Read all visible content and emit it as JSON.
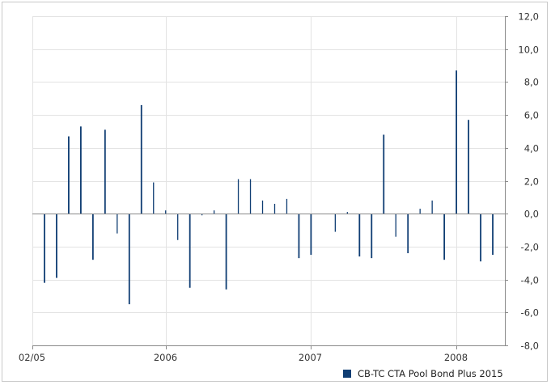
{
  "chart_data": {
    "type": "bar",
    "title": "",
    "xlabel": "",
    "ylabel": "",
    "ylim": [
      -8.0,
      12.0
    ],
    "y_ticks": [
      12.0,
      10.0,
      8.0,
      6.0,
      4.0,
      2.0,
      0.0,
      -2.0,
      -4.0,
      -6.0,
      -8.0
    ],
    "y_tick_labels": [
      "12,0",
      "10,0",
      "8,0",
      "6,0",
      "4,0",
      "2,0",
      "0,0",
      "-2,0",
      "-4,0",
      "-6,0",
      "-8,0"
    ],
    "x_range": [
      "2005-02",
      "2008-05"
    ],
    "x_ticks": [
      {
        "label": "02/05",
        "date": "2005-02"
      },
      {
        "label": "2006",
        "date": "2006-01"
      },
      {
        "label": "2007",
        "date": "2007-01"
      },
      {
        "label": "2008",
        "date": "2008-01"
      }
    ],
    "grid": true,
    "legend_position": "bottom-right",
    "colors": {
      "bar": "#0f3d73",
      "grid": "#e3e3e3",
      "axis": "#8a8a8a"
    },
    "series": [
      {
        "name": "CB-TC CTA Pool Bond Plus 2015",
        "points": [
          {
            "date": "2005-03",
            "value": -4.2
          },
          {
            "date": "2005-04",
            "value": -3.9
          },
          {
            "date": "2005-05",
            "value": 4.7
          },
          {
            "date": "2005-06",
            "value": 5.3
          },
          {
            "date": "2005-07",
            "value": -2.8
          },
          {
            "date": "2005-08",
            "value": 5.1
          },
          {
            "date": "2005-09",
            "value": -1.2
          },
          {
            "date": "2005-10",
            "value": -5.5
          },
          {
            "date": "2005-11",
            "value": 6.6
          },
          {
            "date": "2005-12",
            "value": 1.9
          },
          {
            "date": "2006-01",
            "value": 0.2
          },
          {
            "date": "2006-02",
            "value": -1.6
          },
          {
            "date": "2006-03",
            "value": -4.5
          },
          {
            "date": "2006-04",
            "value": -0.1
          },
          {
            "date": "2006-05",
            "value": 0.2
          },
          {
            "date": "2006-06",
            "value": -4.6
          },
          {
            "date": "2006-07",
            "value": 2.1
          },
          {
            "date": "2006-08",
            "value": 2.1
          },
          {
            "date": "2006-09",
            "value": 0.8
          },
          {
            "date": "2006-10",
            "value": 0.6
          },
          {
            "date": "2006-11",
            "value": 0.9
          },
          {
            "date": "2006-12",
            "value": -2.7
          },
          {
            "date": "2007-01",
            "value": -2.5
          },
          {
            "date": "2007-02",
            "value": 0.0
          },
          {
            "date": "2007-03",
            "value": -1.1
          },
          {
            "date": "2007-04",
            "value": 0.1
          },
          {
            "date": "2007-05",
            "value": -2.6
          },
          {
            "date": "2007-06",
            "value": -2.7
          },
          {
            "date": "2007-07",
            "value": 4.8
          },
          {
            "date": "2007-08",
            "value": -1.4
          },
          {
            "date": "2007-09",
            "value": -2.4
          },
          {
            "date": "2007-10",
            "value": 0.3
          },
          {
            "date": "2007-11",
            "value": 0.8
          },
          {
            "date": "2007-12",
            "value": -2.8
          },
          {
            "date": "2008-01",
            "value": 8.7
          },
          {
            "date": "2008-02",
            "value": 5.7
          },
          {
            "date": "2008-03",
            "value": -2.9
          },
          {
            "date": "2008-04",
            "value": -2.5
          }
        ]
      }
    ]
  }
}
